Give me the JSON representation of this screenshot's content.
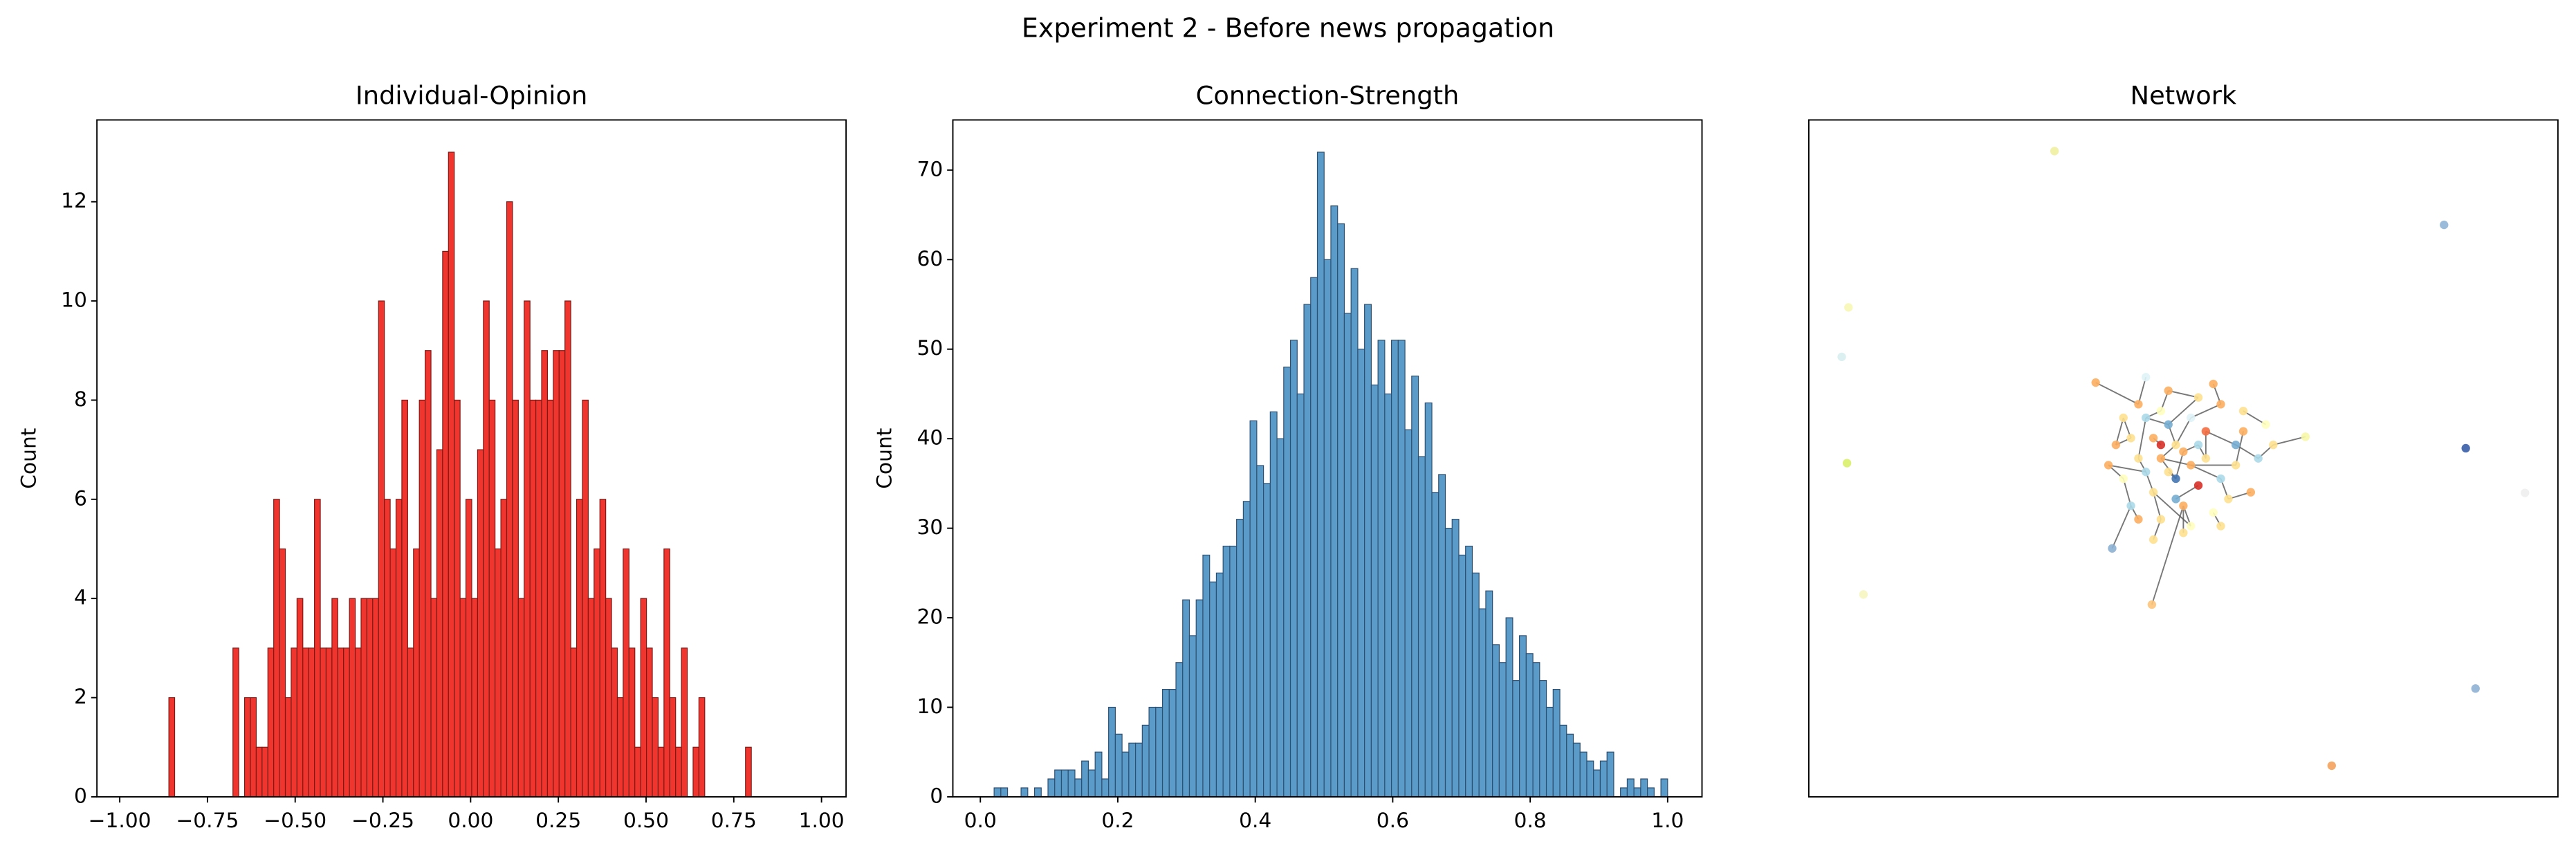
{
  "title": "Experiment 2 - Before news propagation",
  "chart_data": [
    {
      "type": "histogram",
      "title": "Individual-Opinion",
      "ylabel": "Count",
      "color": "#f0352e",
      "edgecolor": "#7a1a16",
      "bins": [
        -0.86,
        -0.8434,
        -0.8268,
        -0.8102,
        -0.7936,
        -0.777,
        -0.7604,
        -0.7438,
        -0.7272,
        -0.7106,
        -0.694,
        -0.6774,
        -0.6608,
        -0.6442,
        -0.6276,
        -0.611,
        -0.5944,
        -0.5778,
        -0.5612,
        -0.5446,
        -0.528,
        -0.5114,
        -0.4948,
        -0.4782,
        -0.4616,
        -0.445,
        -0.4284,
        -0.4118,
        -0.3952,
        -0.3786,
        -0.362,
        -0.3454,
        -0.3288,
        -0.3122,
        -0.2956,
        -0.279,
        -0.2624,
        -0.2458,
        -0.2292,
        -0.2126,
        -0.196,
        -0.1794,
        -0.1628,
        -0.1462,
        -0.1296,
        -0.113,
        -0.0964,
        -0.0798,
        -0.0632,
        -0.0466,
        -0.03,
        -0.0134,
        0.0032,
        0.0198,
        0.0364,
        0.053,
        0.0696,
        0.0862,
        0.1028,
        0.1194,
        0.136,
        0.1526,
        0.1692,
        0.1858,
        0.2024,
        0.219,
        0.2356,
        0.2522,
        0.2688,
        0.2854,
        0.302,
        0.3186,
        0.3352,
        0.3518,
        0.3684,
        0.385,
        0.4016,
        0.4182,
        0.4348,
        0.4514,
        0.468,
        0.4846,
        0.5012,
        0.5178,
        0.5344,
        0.551,
        0.5676,
        0.5842,
        0.6008,
        0.6174,
        0.634,
        0.6506,
        0.6672,
        0.6838,
        0.7004,
        0.717,
        0.7336,
        0.7502,
        0.7668,
        0.7834,
        0.8
      ],
      "values": [
        2,
        0,
        0,
        0,
        0,
        0,
        0,
        0,
        0,
        0,
        0,
        3,
        0,
        2,
        2,
        1,
        1,
        3,
        6,
        5,
        2,
        3,
        4,
        3,
        3,
        6,
        3,
        3,
        4,
        3,
        3,
        4,
        3,
        4,
        4,
        4,
        10,
        6,
        5,
        6,
        8,
        3,
        5,
        8,
        9,
        4,
        7,
        11,
        13,
        8,
        4,
        6,
        4,
        7,
        10,
        8,
        5,
        6,
        12,
        8,
        4,
        10,
        8,
        8,
        9,
        8,
        9,
        9,
        10,
        3,
        6,
        8,
        4,
        5,
        6,
        4,
        3,
        2,
        5,
        3,
        1,
        4,
        3,
        2,
        1,
        5,
        2,
        1,
        3,
        0,
        1,
        2,
        0,
        0,
        0,
        0,
        0,
        0,
        0,
        1
      ],
      "xlim": [
        -1.065,
        1.07
      ],
      "ylim": [
        0,
        13.65
      ],
      "xticks": [
        {
          "value": -1,
          "label": "−1.00"
        },
        {
          "value": -0.75,
          "label": "−0.75"
        },
        {
          "value": -0.5,
          "label": "−0.50"
        },
        {
          "value": -0.25,
          "label": "−0.25"
        },
        {
          "value": 0,
          "label": "0.00"
        },
        {
          "value": 0.25,
          "label": "0.25"
        },
        {
          "value": 0.5,
          "label": "0.50"
        },
        {
          "value": 0.75,
          "label": "0.75"
        },
        {
          "value": 1,
          "label": "1.00"
        }
      ],
      "yticks": [
        0,
        2,
        4,
        6,
        8,
        10,
        12
      ]
    },
    {
      "type": "histogram",
      "title": "Connection-Strength",
      "ylabel": "Count",
      "color": "#5a9bc9",
      "edgecolor": "#2f4f6f",
      "bins": [
        0.02,
        0.0298,
        0.0396,
        0.0494,
        0.0592,
        0.069,
        0.0788,
        0.0886,
        0.0984,
        0.1082,
        0.118,
        0.1278,
        0.1376,
        0.1474,
        0.1572,
        0.167,
        0.1768,
        0.1866,
        0.1964,
        0.2062,
        0.216,
        0.2258,
        0.2356,
        0.2454,
        0.2552,
        0.265,
        0.2748,
        0.2846,
        0.2944,
        0.3042,
        0.314,
        0.3238,
        0.3336,
        0.3434,
        0.3532,
        0.363,
        0.3728,
        0.3826,
        0.3924,
        0.4022,
        0.412,
        0.4218,
        0.4316,
        0.4414,
        0.4512,
        0.461,
        0.4708,
        0.4806,
        0.4904,
        0.5002,
        0.51,
        0.5198,
        0.5296,
        0.5394,
        0.5492,
        0.559,
        0.5688,
        0.5786,
        0.5884,
        0.5982,
        0.608,
        0.6178,
        0.6276,
        0.6374,
        0.6472,
        0.657,
        0.6668,
        0.6766,
        0.6864,
        0.6962,
        0.706,
        0.7158,
        0.7256,
        0.7354,
        0.7452,
        0.755,
        0.7648,
        0.7746,
        0.7844,
        0.7942,
        0.804,
        0.8138,
        0.8236,
        0.8334,
        0.8432,
        0.853,
        0.8628,
        0.8726,
        0.8824,
        0.8922,
        0.902,
        0.9118,
        0.9216,
        0.9314,
        0.9412,
        0.951,
        0.9608,
        0.9706,
        0.9804,
        0.9902,
        1.0
      ],
      "values": [
        1,
        1,
        0,
        0,
        1,
        0,
        1,
        0,
        2,
        3,
        3,
        3,
        2,
        4,
        3,
        5,
        2,
        10,
        7,
        5,
        6,
        6,
        8,
        10,
        10,
        12,
        12,
        15,
        22,
        18,
        22,
        27,
        24,
        25,
        28,
        28,
        31,
        33,
        42,
        37,
        35,
        43,
        40,
        48,
        51,
        45,
        55,
        58,
        72,
        60,
        66,
        64,
        54,
        59,
        50,
        55,
        46,
        51,
        45,
        51,
        51,
        41,
        47,
        38,
        44,
        34,
        36,
        30,
        31,
        27,
        28,
        25,
        21,
        23,
        17,
        15,
        20,
        13,
        18,
        16,
        15,
        13,
        10,
        12,
        8,
        7,
        6,
        5,
        4,
        3,
        4,
        5,
        0,
        1,
        2,
        1,
        2,
        1,
        0,
        2
      ],
      "xlim": [
        -0.04,
        1.05
      ],
      "ylim": [
        0,
        75.6
      ],
      "xticks": [
        {
          "value": 0,
          "label": "0.0"
        },
        0.2,
        0.4,
        0.6,
        0.8,
        {
          "value": 1,
          "label": "1.0"
        }
      ],
      "yticks": [
        0,
        10,
        20,
        30,
        40,
        50,
        60,
        70
      ]
    },
    {
      "type": "network",
      "title": "Network",
      "xlim": [
        0,
        1
      ],
      "ylim": [
        0,
        1
      ],
      "edgecolor": "#555555",
      "nodes": [
        {
          "x": 0.328,
          "y": 0.954,
          "color": "#f0f0a0"
        },
        {
          "x": 0.848,
          "y": 0.845,
          "color": "#8fb5d6"
        },
        {
          "x": 0.053,
          "y": 0.723,
          "color": "#f7f7b5"
        },
        {
          "x": 0.044,
          "y": 0.65,
          "color": "#d8eef0"
        },
        {
          "x": 0.051,
          "y": 0.493,
          "color": "#d9ef6a"
        },
        {
          "x": 0.877,
          "y": 0.515,
          "color": "#3a5da8"
        },
        {
          "x": 0.956,
          "y": 0.449,
          "color": "#eeeeee"
        },
        {
          "x": 0.073,
          "y": 0.299,
          "color": "#f5f5c0"
        },
        {
          "x": 0.89,
          "y": 0.16,
          "color": "#8fb1d4"
        },
        {
          "x": 0.698,
          "y": 0.046,
          "color": "#f4a25c"
        },
        {
          "x": 0.458,
          "y": 0.284,
          "color": "#fdc47a"
        },
        {
          "x": 0.405,
          "y": 0.367,
          "color": "#8cb0d3"
        },
        {
          "x": 0.663,
          "y": 0.532,
          "color": "#f7f7a8"
        },
        {
          "x": 0.383,
          "y": 0.612,
          "color": "#fdae61"
        },
        {
          "x": 0.47,
          "y": 0.5,
          "color": "#fdae61"
        },
        {
          "x": 0.49,
          "y": 0.52,
          "color": "#fee090"
        },
        {
          "x": 0.45,
          "y": 0.48,
          "color": "#abd9e9"
        },
        {
          "x": 0.51,
          "y": 0.49,
          "color": "#fdae61"
        },
        {
          "x": 0.48,
          "y": 0.55,
          "color": "#74add1"
        },
        {
          "x": 0.43,
          "y": 0.53,
          "color": "#fee090"
        },
        {
          "x": 0.53,
          "y": 0.54,
          "color": "#f46d43"
        },
        {
          "x": 0.46,
          "y": 0.45,
          "color": "#fee090"
        },
        {
          "x": 0.5,
          "y": 0.43,
          "color": "#fdae61"
        },
        {
          "x": 0.55,
          "y": 0.47,
          "color": "#abd9e9"
        },
        {
          "x": 0.42,
          "y": 0.47,
          "color": "#ffffbf"
        },
        {
          "x": 0.44,
          "y": 0.58,
          "color": "#fdae61"
        },
        {
          "x": 0.52,
          "y": 0.59,
          "color": "#fee090"
        },
        {
          "x": 0.57,
          "y": 0.52,
          "color": "#74add1"
        },
        {
          "x": 0.47,
          "y": 0.41,
          "color": "#fee090"
        },
        {
          "x": 0.41,
          "y": 0.52,
          "color": "#fdae61"
        },
        {
          "x": 0.54,
          "y": 0.42,
          "color": "#ffffbf"
        },
        {
          "x": 0.49,
          "y": 0.47,
          "color": "#4575b4"
        },
        {
          "x": 0.46,
          "y": 0.53,
          "color": "#fdae61"
        },
        {
          "x": 0.51,
          "y": 0.56,
          "color": "#e0f3f8"
        },
        {
          "x": 0.58,
          "y": 0.57,
          "color": "#fee090"
        },
        {
          "x": 0.43,
          "y": 0.43,
          "color": "#abd9e9"
        },
        {
          "x": 0.53,
          "y": 0.5,
          "color": "#fee090"
        },
        {
          "x": 0.48,
          "y": 0.6,
          "color": "#fdae61"
        },
        {
          "x": 0.56,
          "y": 0.44,
          "color": "#fee090"
        },
        {
          "x": 0.4,
          "y": 0.49,
          "color": "#fdae61"
        },
        {
          "x": 0.5,
          "y": 0.39,
          "color": "#fee090"
        },
        {
          "x": 0.6,
          "y": 0.5,
          "color": "#abd9e9"
        },
        {
          "x": 0.45,
          "y": 0.62,
          "color": "#e0f3f8"
        },
        {
          "x": 0.52,
          "y": 0.46,
          "color": "#d73027"
        },
        {
          "x": 0.47,
          "y": 0.57,
          "color": "#ffffbf"
        },
        {
          "x": 0.55,
          "y": 0.58,
          "color": "#fdae61"
        },
        {
          "x": 0.44,
          "y": 0.5,
          "color": "#fee090"
        },
        {
          "x": 0.5,
          "y": 0.51,
          "color": "#fdae61"
        },
        {
          "x": 0.57,
          "y": 0.49,
          "color": "#fee090"
        },
        {
          "x": 0.49,
          "y": 0.44,
          "color": "#74add1"
        },
        {
          "x": 0.42,
          "y": 0.56,
          "color": "#fee090"
        },
        {
          "x": 0.54,
          "y": 0.61,
          "color": "#fdae61"
        },
        {
          "x": 0.61,
          "y": 0.55,
          "color": "#ffffbf"
        },
        {
          "x": 0.46,
          "y": 0.38,
          "color": "#fee090"
        },
        {
          "x": 0.59,
          "y": 0.45,
          "color": "#fdae61"
        },
        {
          "x": 0.52,
          "y": 0.52,
          "color": "#abd9e9"
        },
        {
          "x": 0.48,
          "y": 0.48,
          "color": "#fee090"
        },
        {
          "x": 0.62,
          "y": 0.52,
          "color": "#fee090"
        },
        {
          "x": 0.44,
          "y": 0.41,
          "color": "#fdae61"
        },
        {
          "x": 0.51,
          "y": 0.4,
          "color": "#ffffbf"
        },
        {
          "x": 0.55,
          "y": 0.4,
          "color": "#fee090"
        },
        {
          "x": 0.47,
          "y": 0.52,
          "color": "#d73027"
        },
        {
          "x": 0.58,
          "y": 0.54,
          "color": "#fdae61"
        },
        {
          "x": 0.45,
          "y": 0.56,
          "color": "#abd9e9"
        }
      ],
      "edges": [
        [
          10,
          22
        ],
        [
          11,
          35
        ],
        [
          12,
          57
        ],
        [
          13,
          25
        ],
        [
          14,
          15
        ],
        [
          14,
          17
        ],
        [
          15,
          18
        ],
        [
          16,
          21
        ],
        [
          17,
          23
        ],
        [
          18,
          26
        ],
        [
          19,
          29
        ],
        [
          20,
          27
        ],
        [
          21,
          28
        ],
        [
          22,
          40
        ],
        [
          23,
          38
        ],
        [
          24,
          39
        ],
        [
          25,
          42
        ],
        [
          26,
          37
        ],
        [
          27,
          41
        ],
        [
          28,
          53
        ],
        [
          30,
          60
        ],
        [
          31,
          47
        ],
        [
          32,
          61
        ],
        [
          33,
          45
        ],
        [
          34,
          52
        ],
        [
          35,
          58
        ],
        [
          36,
          55
        ],
        [
          37,
          44
        ],
        [
          38,
          54
        ],
        [
          43,
          49
        ],
        [
          46,
          63
        ],
        [
          48,
          62
        ],
        [
          50,
          19
        ],
        [
          51,
          45
        ],
        [
          56,
          31
        ],
        [
          59,
          22
        ],
        [
          14,
          31
        ],
        [
          15,
          33
        ],
        [
          16,
          46
        ],
        [
          20,
          36
        ],
        [
          24,
          35
        ],
        [
          29,
          50
        ],
        [
          41,
          57
        ],
        [
          39,
          16
        ],
        [
          47,
          55
        ],
        [
          63,
          44
        ],
        [
          21,
          59
        ],
        [
          17,
          48
        ],
        [
          18,
          63
        ]
      ]
    }
  ]
}
